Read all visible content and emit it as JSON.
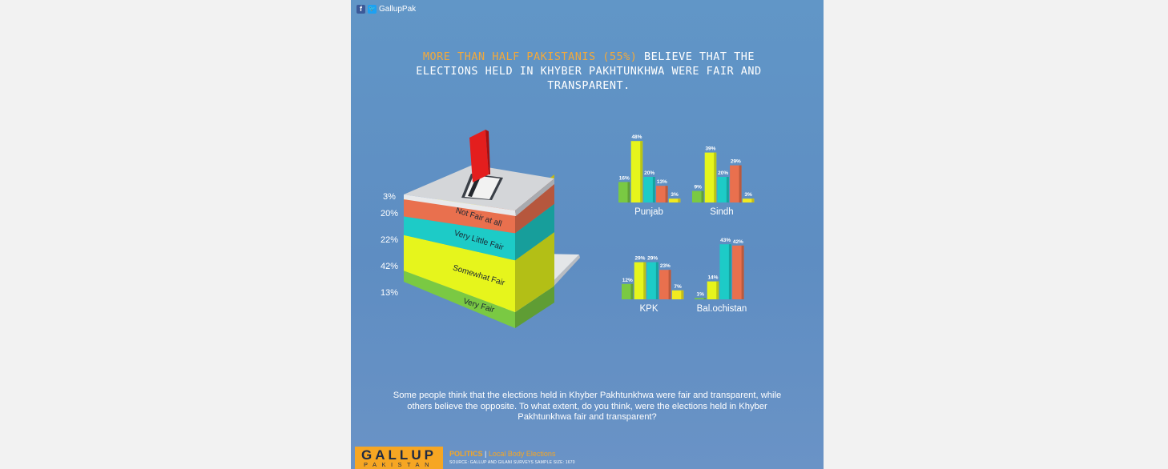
{
  "social": {
    "handle": "GallupPak",
    "icons": [
      "facebook-icon",
      "twitter-icon"
    ]
  },
  "headline": {
    "highlight": "MORE THAN HALF PAKISTANIS (55%)",
    "line1_rest": " BELIEVE THAT THE",
    "line2": "ELECTIONS HELD IN KHYBER PAKHTUNKHWA WERE FAIR AND",
    "line3": "TRANSPARENT."
  },
  "chart_data": [
    {
      "type": "bar",
      "title": "",
      "categories": [
        "Very Fair",
        "Somewhat Fair",
        "Very Little Fair",
        "Not Fair at all",
        ""
      ],
      "values": [
        13,
        42,
        22,
        20,
        3
      ],
      "value_labels": [
        "13%",
        "42%",
        "22%",
        "20%",
        "3%"
      ],
      "colors": [
        "#7ac943",
        "#e6f51c",
        "#1dcbc7",
        "#e9704e",
        "#f2ea20"
      ],
      "style": "stacked ballot box"
    },
    {
      "type": "bar",
      "title": "Punjab",
      "values": [
        16,
        48,
        20,
        13,
        3
      ],
      "value_labels": [
        "16%",
        "48%",
        "20%",
        "13%",
        "3%"
      ],
      "colors": [
        "#7ac943",
        "#e6f51c",
        "#1dcbc7",
        "#e9704e",
        "#f2ea20"
      ],
      "ylim": [
        0,
        50
      ]
    },
    {
      "type": "bar",
      "title": "Sindh",
      "values": [
        9,
        39,
        20,
        29,
        3
      ],
      "value_labels": [
        "9%",
        "39%",
        "20%",
        "29%",
        "3%"
      ],
      "colors": [
        "#7ac943",
        "#e6f51c",
        "#1dcbc7",
        "#e9704e",
        "#f2ea20"
      ],
      "ylim": [
        0,
        50
      ]
    },
    {
      "type": "bar",
      "title": "KPK",
      "values": [
        12,
        29,
        29,
        23,
        7
      ],
      "value_labels": [
        "12%",
        "29%",
        "29%",
        "23%",
        "7%"
      ],
      "colors": [
        "#7ac943",
        "#e6f51c",
        "#1dcbc7",
        "#e9704e",
        "#f2ea20"
      ],
      "ylim": [
        0,
        50
      ]
    },
    {
      "type": "bar",
      "title": "Bal.ochistan",
      "values": [
        1,
        14,
        43,
        42
      ],
      "value_labels": [
        "1%",
        "14%",
        "43%",
        "42%"
      ],
      "colors": [
        "#7ac943",
        "#e6f51c",
        "#1dcbc7",
        "#e9704e"
      ],
      "ylim": [
        0,
        50
      ]
    }
  ],
  "question": "Some people think that the elections held in Khyber Pakhtunkhwa were fair and transparent, while others believe the opposite. To what extent, do you think, were the elections held in Khyber Pakhtunkhwa fair and transparent?",
  "footer": {
    "logo_top": "GALLUP",
    "logo_bottom": "PAKISTAN",
    "category": "POLITICS",
    "separator": "|",
    "topic": "Local Body Elections",
    "source": "SOURCE: GALLUP AND GILANI SURVEYS   SAMPLE SIZE: 1670"
  }
}
